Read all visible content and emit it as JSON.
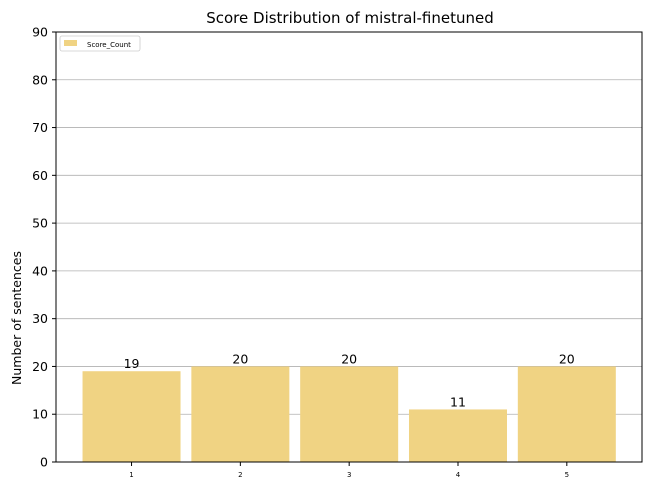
{
  "chart_data": {
    "type": "bar",
    "title": "Score Distribution of mistral-finetuned",
    "xlabel": "",
    "ylabel": "Number of sentences",
    "categories": [
      "1",
      "2",
      "3",
      "4",
      "5"
    ],
    "series": [
      {
        "name": "Score_Count",
        "values": [
          19,
          20,
          20,
          11,
          20
        ],
        "color": "#f0d383"
      }
    ],
    "ylim": [
      0,
      90
    ],
    "yticks": [
      0,
      10,
      20,
      30,
      40,
      50,
      60,
      70,
      80,
      90
    ],
    "grid": "y",
    "legend": "top-left"
  },
  "colors": {
    "bar": "#f0d383",
    "grid": "#b0b0b0",
    "axis": "#000000"
  }
}
